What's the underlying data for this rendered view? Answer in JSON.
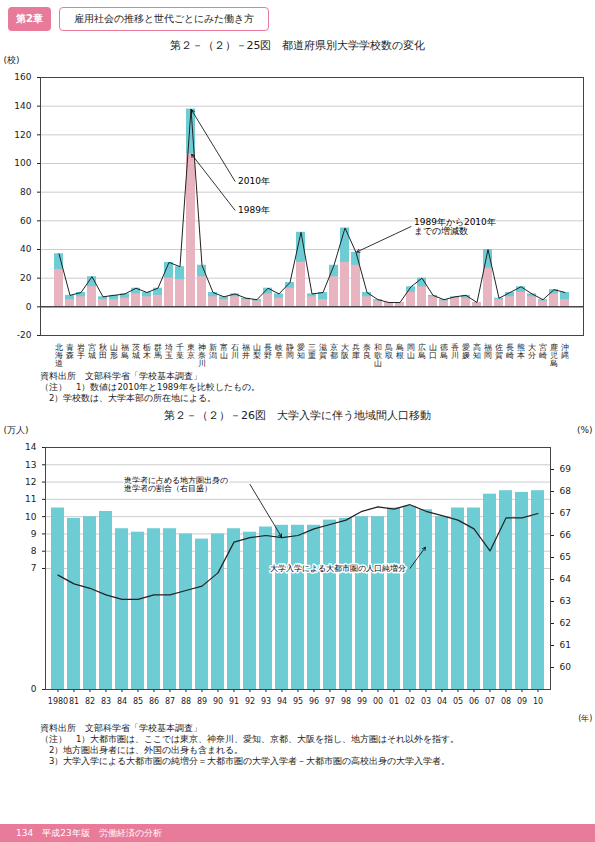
{
  "header": {
    "label": "第2章",
    "title": "雇用社会の推移と世代ごとにみた働き方"
  },
  "footer": "134　平成23年版　労働経済の分析",
  "chart_data": [
    {
      "type": "bar",
      "title": "第２－（２）－25図　都道府県別大学学校数の変化",
      "ylabel": "(校)",
      "categories": [
        "北海道",
        "青森",
        "岩手",
        "宮城",
        "秋田",
        "山形",
        "福島",
        "茨城",
        "栃木",
        "群馬",
        "埼玉",
        "千葉",
        "東京",
        "神奈川",
        "新潟",
        "富山",
        "石川",
        "福井",
        "山梨",
        "長野",
        "岐阜",
        "静岡",
        "愛知",
        "三重",
        "滋賀",
        "京都",
        "大阪",
        "兵庫",
        "奈良",
        "和歌山",
        "鳥取",
        "島根",
        "岡山",
        "広島",
        "山口",
        "徳島",
        "香川",
        "愛媛",
        "高知",
        "福岡",
        "佐賀",
        "長崎",
        "熊本",
        "大分",
        "宮崎",
        "鹿児島",
        "沖縄"
      ],
      "series": [
        {
          "name": "2010年",
          "type": "bar",
          "color": "#6ecdd4",
          "values": [
            37,
            8,
            10,
            21,
            7,
            8,
            9,
            13,
            10,
            13,
            31,
            28,
            138,
            29,
            10,
            7,
            9,
            6,
            5,
            13,
            9,
            17,
            52,
            9,
            10,
            29,
            55,
            38,
            10,
            5,
            3,
            3,
            14,
            20,
            8,
            5,
            7,
            8,
            3,
            40,
            6,
            10,
            14,
            9,
            5,
            12,
            10
          ]
        },
        {
          "name": "1989年",
          "type": "bar",
          "color": "#e8b4c0",
          "values": [
            26,
            5,
            7,
            14,
            5,
            5,
            6,
            9,
            7,
            8,
            20,
            19,
            107,
            21,
            7,
            5,
            7,
            5,
            4,
            9,
            6,
            13,
            31,
            7,
            5,
            21,
            31,
            29,
            7,
            4,
            3,
            3,
            10,
            14,
            7,
            4,
            6,
            6,
            3,
            27,
            5,
            7,
            10,
            7,
            4,
            9,
            5
          ]
        },
        {
          "name": "2010年",
          "type": "line",
          "color": "#222222",
          "values": [
            37,
            8,
            10,
            21,
            7,
            8,
            9,
            13,
            10,
            13,
            31,
            28,
            138,
            29,
            10,
            7,
            9,
            6,
            5,
            13,
            9,
            17,
            52,
            9,
            10,
            29,
            55,
            38,
            10,
            5,
            3,
            3,
            14,
            20,
            8,
            5,
            7,
            8,
            3,
            40,
            6,
            10,
            14,
            9,
            5,
            12,
            10
          ]
        }
      ],
      "stacked": false,
      "ylim": [
        -20,
        160
      ],
      "yticks": [
        -20,
        0,
        20,
        40,
        60,
        80,
        100,
        120,
        140,
        160
      ],
      "grid": true,
      "annotations": [
        {
          "text": "2010年",
          "x": "東京",
          "y": 138
        },
        {
          "text": "1989年",
          "x": "東京",
          "y": 107
        },
        {
          "text": "1989年から2010年\nまでの増減数",
          "x": "兵庫",
          "y": 38
        }
      ],
      "source": "資料出所　文部科学省「学校基本調査」",
      "notes": [
        "（注）　1）数値は2010年と1989年を比較したもの。",
        "　2）学校数は、大学本部の所在地による。"
      ]
    },
    {
      "type": "bar",
      "title": "第２－（２）－26図　大学入学に伴う地域間人口移動",
      "xlabel": "(年)",
      "ylabel": "(万人)",
      "y2label": "(%)",
      "categories": [
        "1980",
        "81",
        "82",
        "83",
        "84",
        "85",
        "86",
        "87",
        "88",
        "89",
        "90",
        "91",
        "92",
        "93",
        "94",
        "95",
        "96",
        "97",
        "98",
        "99",
        "00",
        "01",
        "02",
        "03",
        "04",
        "05",
        "06",
        "07",
        "08",
        "09",
        "10"
      ],
      "series": [
        {
          "name": "大学入学による大都市圏の人口純増分",
          "type": "bar",
          "color": "#6ecdd4",
          "values": [
            10.5,
            9.9,
            10.0,
            10.3,
            9.3,
            9.1,
            9.3,
            9.3,
            9.0,
            8.7,
            9.0,
            9.3,
            9.1,
            9.4,
            9.5,
            9.5,
            9.5,
            9.8,
            9.9,
            10.0,
            10.0,
            10.5,
            10.6,
            10.4,
            10.0,
            10.5,
            10.5,
            11.3,
            11.5,
            11.4,
            11.5
          ]
        },
        {
          "name": "進学者に占める地方圏出身の\n進学者の割合（右目盛）",
          "type": "line",
          "axis": "y2",
          "color": "#222222",
          "values": [
            64.2,
            63.8,
            63.6,
            63.3,
            63.1,
            63.1,
            63.3,
            63.3,
            63.5,
            63.7,
            64.3,
            65.7,
            65.9,
            66.0,
            65.9,
            66.0,
            66.3,
            66.5,
            66.7,
            67.1,
            67.3,
            67.2,
            67.4,
            67.1,
            66.9,
            66.7,
            66.3,
            65.3,
            66.8,
            66.8,
            67.0
          ]
        }
      ],
      "ylim": [
        0,
        14
      ],
      "yticks": [
        0,
        7,
        8,
        9,
        10,
        11,
        12,
        13,
        14
      ],
      "y2lim": [
        59.0,
        70.0
      ],
      "y2ticks": [
        60,
        61,
        62,
        63,
        64,
        65,
        66,
        67,
        68,
        69
      ],
      "grid": true,
      "annotations": [
        {
          "text": "進学者に占める地方圏出身の\n進学者の割合（右目盛）",
          "x": "94",
          "y": 65.9,
          "axis": "y2"
        },
        {
          "text": "大学入学による大都市圏の人口純増分",
          "x": "03",
          "y": 65.5,
          "axis": "y2"
        }
      ],
      "source": "資料出所　文部科学省「学校基本調査」",
      "notes": [
        "（注）　1）大都市圏は、ここでは東京、神奈川、愛知、京都、大阪を指し、地方圏はそれ以外を指す。",
        "　2）地方圏出身者には、外国の出身も含まれる。",
        "　3）大学入学による大都市圏の純増分＝大都市圏の大学入学者－大都市圏の高校出身の大学入学者。"
      ]
    }
  ]
}
